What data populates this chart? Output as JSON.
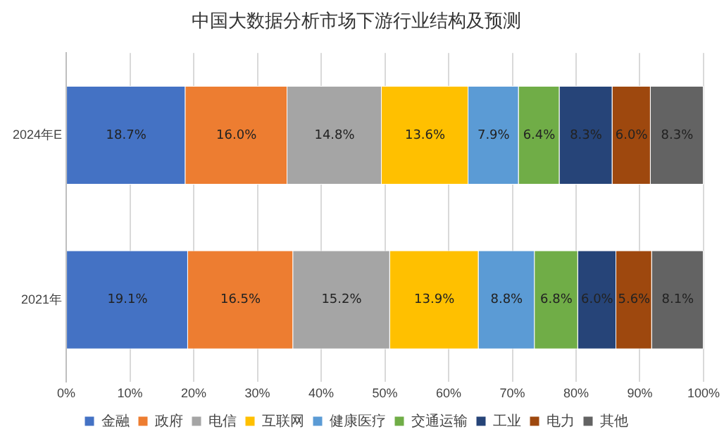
{
  "chart_data": {
    "type": "bar",
    "orientation": "horizontal",
    "stacked": true,
    "title": "中国大数据分析市场下游行业结构及预测",
    "categories": [
      "2024年E",
      "2021年"
    ],
    "series": [
      {
        "name": "金融",
        "color": "#4472c4",
        "values": [
          18.7,
          19.1
        ],
        "value_labels": [
          "18.7%",
          "19.1%"
        ]
      },
      {
        "name": "政府",
        "color": "#ed7d31",
        "values": [
          16.0,
          16.5
        ],
        "value_labels": [
          "16.0%",
          "16.5%"
        ]
      },
      {
        "name": "电信",
        "color": "#a5a5a5",
        "values": [
          14.8,
          15.2
        ],
        "value_labels": [
          "14.8%",
          "15.2%"
        ]
      },
      {
        "name": "互联网",
        "color": "#ffc000",
        "values": [
          13.6,
          13.9
        ],
        "value_labels": [
          "13.6%",
          "13.9%"
        ]
      },
      {
        "name": "健康医疗",
        "color": "#5b9bd5",
        "values": [
          7.9,
          8.8
        ],
        "value_labels": [
          "7.9%",
          "8.8%"
        ]
      },
      {
        "name": "交通运输",
        "color": "#70ad47",
        "values": [
          6.4,
          6.8
        ],
        "value_labels": [
          "6.4%",
          "6.8%"
        ]
      },
      {
        "name": "工业",
        "color": "#264478",
        "values": [
          8.3,
          6.0
        ],
        "value_labels": [
          "8.3%",
          "6.0%"
        ]
      },
      {
        "name": "电力",
        "color": "#9e480e",
        "values": [
          6.0,
          5.6
        ],
        "value_labels": [
          "6.0%",
          "5.6%"
        ]
      },
      {
        "name": "其他",
        "color": "#636363",
        "values": [
          8.3,
          8.1
        ],
        "value_labels": [
          "8.3%",
          "8.1%"
        ]
      }
    ],
    "xlim": [
      0,
      100
    ],
    "xticks": [
      {
        "value": 0,
        "label": "0%"
      },
      {
        "value": 10,
        "label": "10%"
      },
      {
        "value": 20,
        "label": "20%"
      },
      {
        "value": 30,
        "label": "30%"
      },
      {
        "value": 40,
        "label": "40%"
      },
      {
        "value": 50,
        "label": "50%"
      },
      {
        "value": 60,
        "label": "60%"
      },
      {
        "value": 70,
        "label": "70%"
      },
      {
        "value": 80,
        "label": "80%"
      },
      {
        "value": 90,
        "label": "90%"
      },
      {
        "value": 100,
        "label": "100%"
      }
    ],
    "grid": "x",
    "legend": "bottom"
  }
}
